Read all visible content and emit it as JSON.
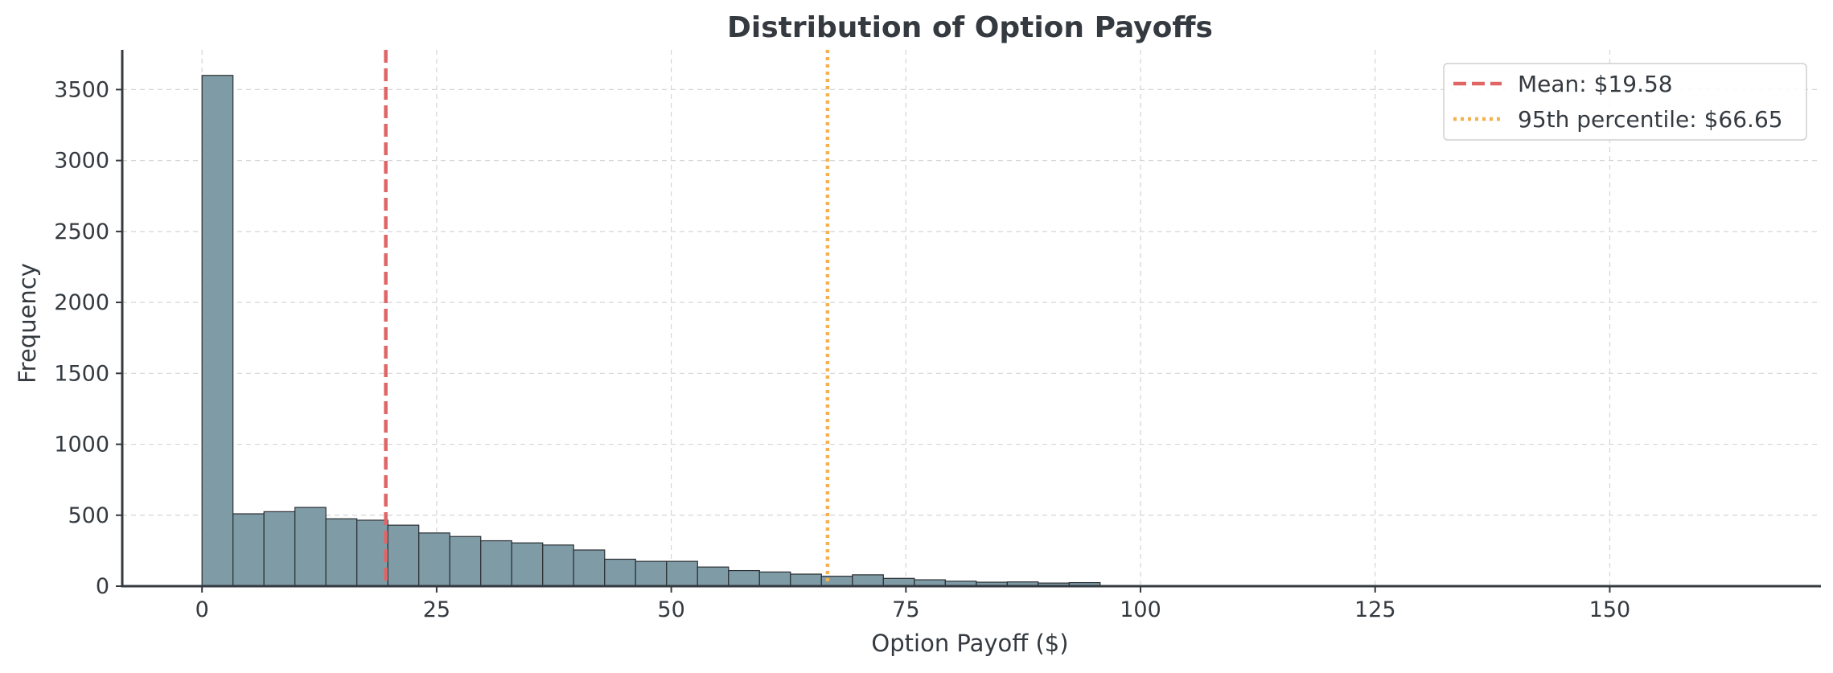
{
  "chart_data": {
    "type": "bar",
    "title": "Distribution of Option Payoffs",
    "xlabel": "Option Payoff ($)",
    "ylabel": "Frequency",
    "xlim": [
      -8.5,
      172.5
    ],
    "ylim": [
      0,
      3780
    ],
    "xticks": [
      0,
      25,
      50,
      75,
      100,
      125,
      150
    ],
    "yticks": [
      0,
      500,
      1000,
      1500,
      2000,
      2500,
      3000,
      3500
    ],
    "bin_edges": [
      0,
      3.3,
      6.6,
      9.9,
      13.2,
      16.5,
      19.8,
      23.1,
      26.4,
      29.7,
      33.0,
      36.3,
      39.6,
      42.9,
      46.2,
      49.5,
      52.8,
      56.1,
      59.4,
      62.7,
      66.0,
      69.3,
      72.6,
      75.9,
      79.2,
      82.5,
      85.8,
      89.1,
      92.4,
      95.7
    ],
    "frequencies": [
      3600,
      510,
      525,
      555,
      475,
      465,
      430,
      375,
      350,
      320,
      305,
      290,
      255,
      190,
      175,
      175,
      135,
      110,
      100,
      85,
      70,
      80,
      55,
      45,
      35,
      28,
      30,
      22,
      25
    ],
    "bar_color": "#7f9ba6",
    "grid": true,
    "lines": [
      {
        "label": "Mean: $19.58",
        "x": 19.58,
        "color": "#e06666",
        "style": "dashed"
      },
      {
        "label": "95th percentile: $66.65",
        "x": 66.65,
        "color": "#f6b04d",
        "style": "dotted"
      }
    ],
    "legend_position": "top-right"
  }
}
